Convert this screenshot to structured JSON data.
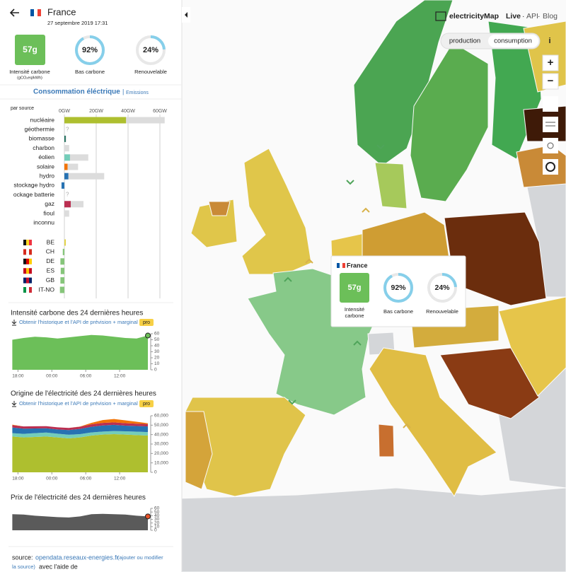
{
  "header": {
    "country": "France",
    "date": "27 septembre 2019 17:31"
  },
  "kpis": {
    "carbon_intensity": {
      "label": "57g",
      "name": "Intensité carbone",
      "unit": "(gCO₂eq/kWh)",
      "color": "#6cbf59"
    },
    "low_carbon": {
      "value": 92,
      "label": "92%",
      "name": "Bas carbone"
    },
    "renewable": {
      "value": 24,
      "label": "24%",
      "name": "Renouvelable"
    }
  },
  "tabs": {
    "active": "Consommation éléctrique",
    "separator": "|",
    "other": "Emissions"
  },
  "sources": {
    "heading": "par source",
    "xlim": [
      0,
      60
    ],
    "xticks": [
      {
        "value": 0,
        "label": "0GW"
      },
      {
        "value": 20,
        "label": "20GW"
      },
      {
        "value": 40,
        "label": "40GW"
      },
      {
        "value": 60,
        "label": "60GW"
      }
    ],
    "capacity_color": "#dcdcdc",
    "rows": [
      {
        "name": "nucléaire",
        "value": 38.7,
        "capacity": 63,
        "color": "#aebf2f"
      },
      {
        "name": "géothermie",
        "value": null,
        "capacity": null,
        "color": "#c0392b",
        "unknown": "?"
      },
      {
        "name": "biomasse",
        "value": 0.8,
        "capacity": 1.2,
        "color": "#166a57"
      },
      {
        "name": "charbon",
        "value": 0,
        "capacity": 3,
        "color": "#ac8c35"
      },
      {
        "name": "éolien",
        "value": 3.5,
        "capacity": 15,
        "color": "#74cdb9"
      },
      {
        "name": "solaire",
        "value": 2,
        "capacity": 8.6,
        "color": "#f27406"
      },
      {
        "name": "hydro",
        "value": 2.5,
        "capacity": 25,
        "color": "#2772b2"
      },
      {
        "name": "stockage hydro",
        "value": -1.8,
        "capacity": null,
        "color": "#2772b2"
      },
      {
        "name": "ockage batterie",
        "value": null,
        "capacity": null,
        "color": "#b6b6b6",
        "unknown": "?"
      },
      {
        "name": "gaz",
        "value": 4,
        "capacity": 12,
        "color": "#bb2f51"
      },
      {
        "name": "fioul",
        "value": 0,
        "capacity": 3,
        "color": "#867d66"
      },
      {
        "name": "inconnu",
        "value": 0,
        "capacity": null,
        "color": "#acacac"
      }
    ],
    "exchanges": [
      {
        "name": "BE",
        "value": 0.9,
        "color": "#e3d34a",
        "flag": [
          "#111111",
          "#fdda24",
          "#ef3340"
        ]
      },
      {
        "name": "CH",
        "value": -1.0,
        "color": "#86c57a",
        "flag": [
          "#d52b1e",
          "#ffffff",
          "#d52b1e"
        ]
      },
      {
        "name": "DE",
        "value": -2.5,
        "color": "#86c57a",
        "flag": [
          "#111111",
          "#dd0000",
          "#ffce00"
        ]
      },
      {
        "name": "ES",
        "value": -2.3,
        "color": "#86c57a",
        "flag": [
          "#c60b1e",
          "#ffc400",
          "#c60b1e"
        ]
      },
      {
        "name": "GB",
        "value": -2.5,
        "color": "#86c57a",
        "flag": [
          "#012169",
          "#c8102e",
          "#012169"
        ]
      },
      {
        "name": "IT-NO",
        "value": -2.8,
        "color": "#86c57a",
        "flag": [
          "#009246",
          "#ffffff",
          "#ce2b37"
        ]
      }
    ]
  },
  "link": {
    "text": "Obtenir l'historique et l'API de prévision + marginal",
    "badge": "pro"
  },
  "carbon_chart": {
    "type": "area",
    "title": "Intensité carbone des 24 dernières heures",
    "color": "#6cbf59",
    "x": [
      -1,
      1,
      3,
      5,
      7,
      9,
      11,
      13,
      15,
      17,
      19,
      21,
      23
    ],
    "values": [
      50,
      53,
      55,
      54,
      52,
      54,
      56,
      58,
      57,
      55,
      53,
      52,
      57
    ],
    "xlim": [
      -1.3,
      23.5
    ],
    "ylim": [
      0,
      60
    ],
    "yticks": [
      0,
      10,
      20,
      30,
      40,
      50,
      60
    ],
    "xticks": [
      {
        "value": 0,
        "label": "18:00"
      },
      {
        "value": 6,
        "label": "00:00"
      },
      {
        "value": 12,
        "label": "06:00"
      },
      {
        "value": 18,
        "label": "12:00"
      }
    ]
  },
  "origin_chart": {
    "type": "stacked_area",
    "title": "Origine de l'électricité des 24 dernières heures",
    "x": [
      -1,
      1,
      3,
      5,
      7,
      9,
      11,
      13,
      15,
      17,
      19,
      21,
      23
    ],
    "xlim": [
      -1.3,
      23.5
    ],
    "ylim": [
      0,
      60000
    ],
    "yticks": [
      0,
      {
        "value": 10000,
        "label": "10,000"
      },
      {
        "value": 20000,
        "label": "20,000"
      },
      {
        "value": 30000,
        "label": "30,000"
      },
      {
        "value": 40000,
        "label": "40,000"
      },
      {
        "value": 50000,
        "label": "50,000"
      },
      {
        "value": 60000,
        "label": "60,000"
      }
    ],
    "xticks": [
      {
        "value": 0,
        "label": "18:00"
      },
      {
        "value": 6,
        "label": "00:00"
      },
      {
        "value": 12,
        "label": "06:00"
      },
      {
        "value": 18,
        "label": "12:00"
      }
    ],
    "series": [
      {
        "color": "#aebf2f",
        "values": [
          38000,
          37000,
          37500,
          38000,
          37000,
          36000,
          37000,
          39000,
          40000,
          40500,
          40000,
          39500,
          39000
        ]
      },
      {
        "color": "#74cdb9",
        "values": [
          3500,
          3800,
          4000,
          4200,
          4000,
          3800,
          3500,
          3300,
          3200,
          3300,
          3500,
          3600,
          3700
        ]
      },
      {
        "color": "#2772b2",
        "values": [
          6000,
          5500,
          5000,
          4500,
          4500,
          5000,
          5500,
          6000,
          6500,
          6500,
          6000,
          6000,
          6000
        ]
      },
      {
        "color": "#bb2f51",
        "values": [
          2500,
          2400,
          2300,
          2200,
          2200,
          2300,
          2400,
          2600,
          2700,
          2700,
          2600,
          2500,
          2500
        ]
      },
      {
        "color": "#f27406",
        "values": [
          500,
          0,
          0,
          0,
          0,
          0,
          200,
          1500,
          3000,
          3500,
          3000,
          2000,
          800
        ]
      }
    ]
  },
  "price_chart": {
    "type": "area",
    "title": "Prix de l'électricité des 24 dernières heures",
    "color": "#5a5a5a",
    "marker_color": "#e8542a",
    "x": [
      -1,
      1,
      3,
      5,
      7,
      9,
      11,
      13,
      15,
      17,
      19,
      21,
      23
    ],
    "values": [
      44,
      43,
      40,
      38,
      36,
      35,
      38,
      44,
      45,
      44,
      43,
      40,
      38
    ],
    "xlim": [
      -1.3,
      23.5
    ],
    "ylim": [
      0,
      60
    ],
    "yticks": [
      0,
      10,
      20,
      30,
      40,
      50,
      60
    ]
  },
  "footer": {
    "source": "source:",
    "link": "opendata.reseaux-energies.fr",
    "edit": [
      "(ajouter ou modifier",
      "la source)"
    ],
    "thanks": "avec l'aide de"
  },
  "tooltip": {
    "country": "France",
    "carbon": "57g",
    "carbon_name": [
      "Intensité",
      "carbone"
    ],
    "low_carbon": {
      "value": 92,
      "label": "92%",
      "name": "Bas carbone"
    },
    "renewable": {
      "value": 24,
      "label": "24%",
      "name": "Renouvelable"
    }
  },
  "topbar": {
    "brand": "electricityMap",
    "live": "Live",
    "sep1": "·",
    "api": "API",
    "sep2": "·",
    "blog": "Blog"
  },
  "toggle": {
    "production": "production",
    "consumption": "consumption",
    "info": "i"
  },
  "zoom": {
    "in": "+",
    "out": "−"
  }
}
